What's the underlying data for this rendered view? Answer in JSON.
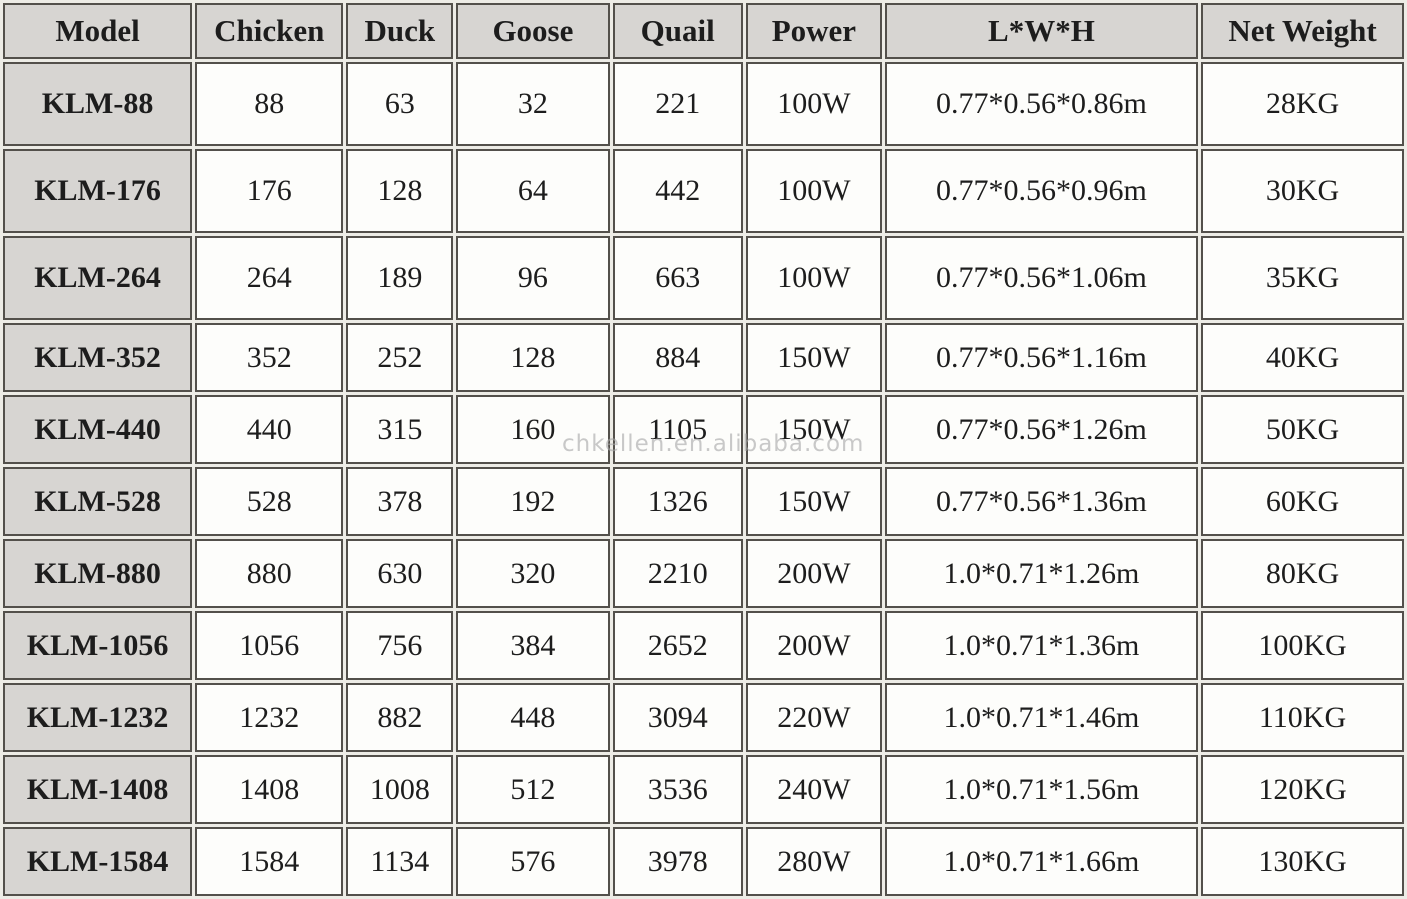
{
  "table": {
    "headers": [
      "Model",
      "Chicken",
      "Duck",
      "Goose",
      "Quail",
      "Power",
      "L*W*H",
      "Net Weight"
    ],
    "column_keys": [
      "model",
      "chicken",
      "duck",
      "goose",
      "quail",
      "power",
      "lwh",
      "net_weight"
    ],
    "rows": [
      {
        "model": "KLM-88",
        "chicken": "88",
        "duck": "63",
        "goose": "32",
        "quail": "221",
        "power": "100W",
        "lwh": "0.77*0.56*0.86m",
        "net_weight": "28KG"
      },
      {
        "model": "KLM-176",
        "chicken": "176",
        "duck": "128",
        "goose": "64",
        "quail": "442",
        "power": "100W",
        "lwh": "0.77*0.56*0.96m",
        "net_weight": "30KG"
      },
      {
        "model": "KLM-264",
        "chicken": "264",
        "duck": "189",
        "goose": "96",
        "quail": "663",
        "power": "100W",
        "lwh": "0.77*0.56*1.06m",
        "net_weight": "35KG"
      },
      {
        "model": "KLM-352",
        "chicken": "352",
        "duck": "252",
        "goose": "128",
        "quail": "884",
        "power": "150W",
        "lwh": "0.77*0.56*1.16m",
        "net_weight": "40KG"
      },
      {
        "model": "KLM-440",
        "chicken": "440",
        "duck": "315",
        "goose": "160",
        "quail": "1105",
        "power": "150W",
        "lwh": "0.77*0.56*1.26m",
        "net_weight": "50KG"
      },
      {
        "model": "KLM-528",
        "chicken": "528",
        "duck": "378",
        "goose": "192",
        "quail": "1326",
        "power": "150W",
        "lwh": "0.77*0.56*1.36m",
        "net_weight": "60KG"
      },
      {
        "model": "KLM-880",
        "chicken": "880",
        "duck": "630",
        "goose": "320",
        "quail": "2210",
        "power": "200W",
        "lwh": "1.0*0.71*1.26m",
        "net_weight": "80KG"
      },
      {
        "model": "KLM-1056",
        "chicken": "1056",
        "duck": "756",
        "goose": "384",
        "quail": "2652",
        "power": "200W",
        "lwh": "1.0*0.71*1.36m",
        "net_weight": "100KG"
      },
      {
        "model": "KLM-1232",
        "chicken": "1232",
        "duck": "882",
        "goose": "448",
        "quail": "3094",
        "power": "220W",
        "lwh": "1.0*0.71*1.46m",
        "net_weight": "110KG"
      },
      {
        "model": "KLM-1408",
        "chicken": "1408",
        "duck": "1008",
        "goose": "512",
        "quail": "3536",
        "power": "240W",
        "lwh": "1.0*0.71*1.56m",
        "net_weight": "120KG"
      },
      {
        "model": "KLM-1584",
        "chicken": "1584",
        "duck": "1134",
        "goose": "576",
        "quail": "3978",
        "power": "280W",
        "lwh": "1.0*0.71*1.66m",
        "net_weight": "130KG"
      }
    ]
  },
  "watermark": {
    "text": "chkellen.en.alibaba.com"
  },
  "colors": {
    "header_bg": "#d7d5d2",
    "cell_bg": "#fdfdfb",
    "border": "#53504b",
    "gap": "#edece6",
    "text": "#1d1d1d",
    "watermark": "#a9a9a9"
  }
}
